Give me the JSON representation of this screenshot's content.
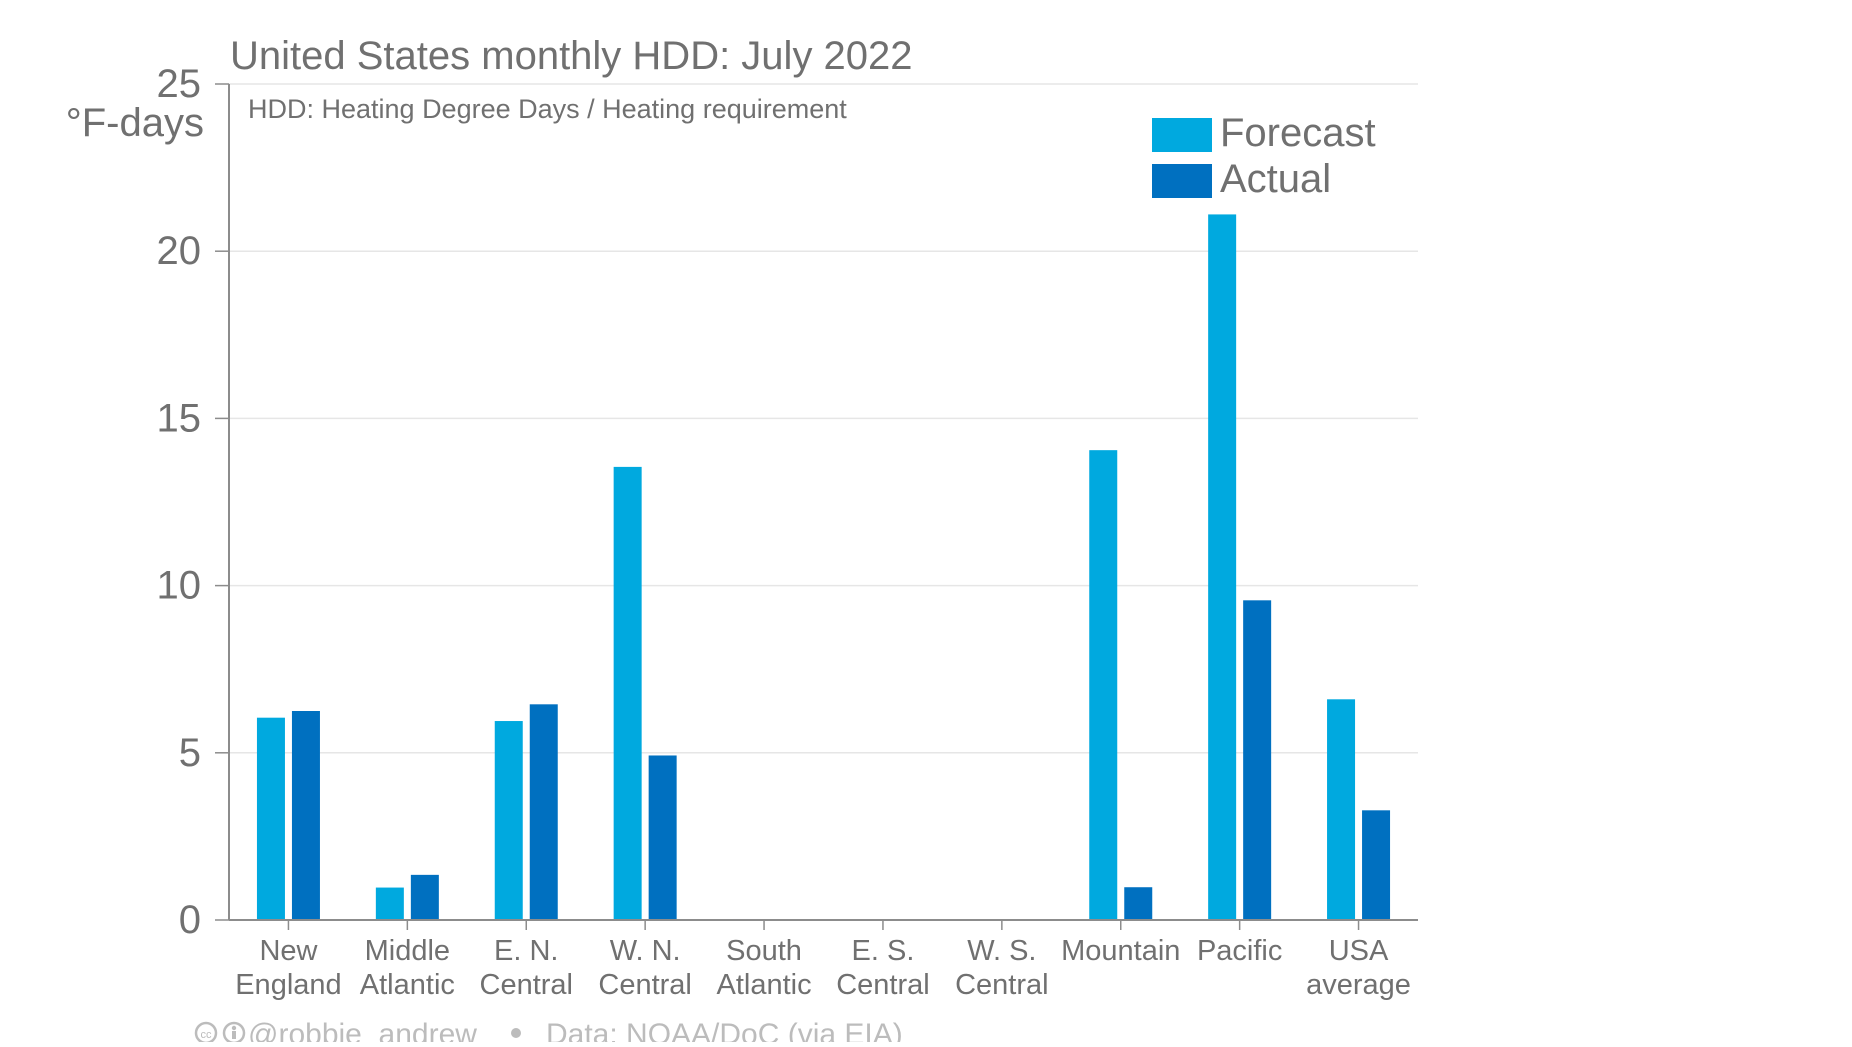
{
  "chart_data": {
    "type": "bar",
    "title": "United States monthly HDD: July 2022",
    "subtitle": "HDD: Heating Degree Days / Heating requirement",
    "ylabel": "°F-days",
    "xlabel": "",
    "ylim": [
      0,
      25
    ],
    "yticks": [
      0,
      5,
      10,
      15,
      20,
      25
    ],
    "grid": true,
    "legend_position": "top-right",
    "categories": [
      [
        "New",
        "England"
      ],
      [
        "Middle",
        "Atlantic"
      ],
      [
        "E. N.",
        "Central"
      ],
      [
        "W. N.",
        "Central"
      ],
      [
        "South",
        "Atlantic"
      ],
      [
        "E. S.",
        "Central"
      ],
      [
        "W. S.",
        "Central"
      ],
      [
        "Mountain"
      ],
      [
        "Pacific"
      ],
      [
        "USA",
        "average"
      ]
    ],
    "series": [
      {
        "name": "Forecast",
        "color": "#00A9DF",
        "values": [
          6.05,
          0.97,
          5.95,
          13.55,
          0.03,
          0,
          0,
          14.05,
          21.1,
          6.6
        ]
      },
      {
        "name": "Actual",
        "color": "#0070C0",
        "values": [
          6.25,
          1.35,
          6.45,
          4.92,
          0,
          0,
          0,
          0.98,
          9.56,
          3.28
        ]
      }
    ],
    "footer": {
      "credit": "@robbie_andrew",
      "source": "Data: NOAA/DoC (via EIA)"
    }
  },
  "colors": {
    "text": "#707070",
    "footer_text": "#bcbcbc",
    "grid": "#e6e6e6",
    "axis": "#8c8c8c"
  }
}
